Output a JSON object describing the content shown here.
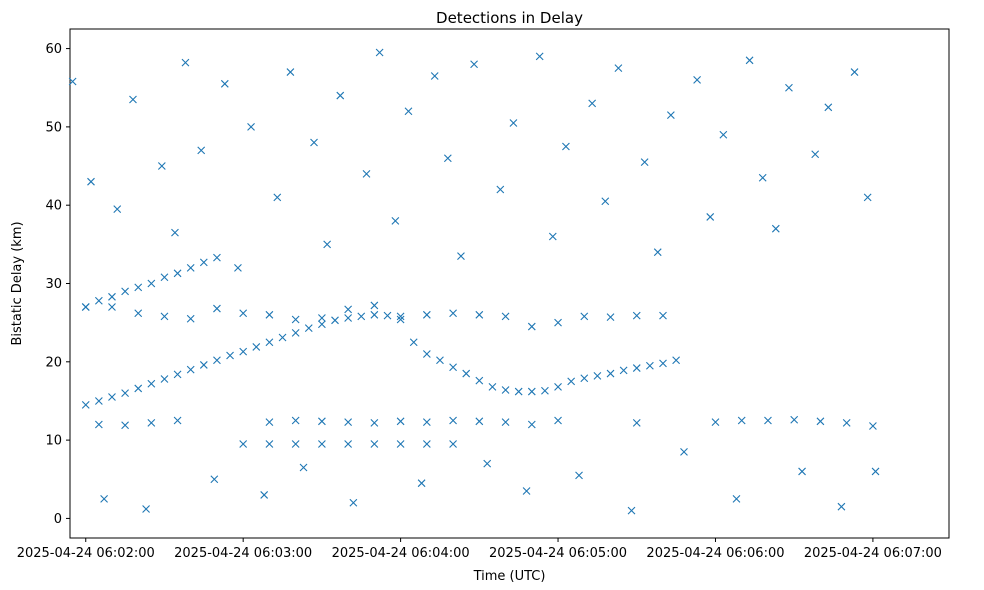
{
  "chart_data": {
    "type": "scatter",
    "title": "Detections in Delay",
    "xlabel": "Time (UTC)",
    "ylabel": "Bistatic Delay (km)",
    "x_unit": "seconds",
    "x_start": "2025-04-24 06:02:00",
    "xlim": [
      "2025-04-24 06:01:54",
      "2025-04-24 06:07:29"
    ],
    "ylim": [
      -2.5,
      62.5
    ],
    "x_ticks": [
      "2025-04-24 06:02:00",
      "2025-04-24 06:03:00",
      "2025-04-24 06:04:00",
      "2025-04-24 06:05:00",
      "2025-04-24 06:06:00",
      "2025-04-24 06:07:00"
    ],
    "y_ticks": [
      0,
      10,
      20,
      30,
      40,
      50,
      60
    ],
    "grid": false,
    "marker": "x",
    "color": "#1f77b4",
    "series": [
      {
        "x": [
          "2025-04-24 06:02:00",
          "2025-04-24 06:02:05",
          "2025-04-24 06:02:10",
          "2025-04-24 06:02:15",
          "2025-04-24 06:02:20",
          "2025-04-24 06:02:25",
          "2025-04-24 06:02:30",
          "2025-04-24 06:02:35",
          "2025-04-24 06:02:40",
          "2025-04-24 06:02:45",
          "2025-04-24 06:02:50",
          "2025-04-24 06:02:55",
          "2025-04-24 06:03:00",
          "2025-04-24 06:03:05",
          "2025-04-24 06:03:10",
          "2025-04-24 06:03:15",
          "2025-04-24 06:03:20",
          "2025-04-24 06:03:25",
          "2025-04-24 06:03:30",
          "2025-04-24 06:03:35",
          "2025-04-24 06:03:40",
          "2025-04-24 06:03:45",
          "2025-04-24 06:03:50",
          "2025-04-24 06:03:55",
          "2025-04-24 06:04:00",
          "2025-04-24 06:04:05",
          "2025-04-24 06:04:10",
          "2025-04-24 06:04:15",
          "2025-04-24 06:04:20",
          "2025-04-24 06:04:25",
          "2025-04-24 06:04:30",
          "2025-04-24 06:04:35",
          "2025-04-24 06:04:40",
          "2025-04-24 06:04:45",
          "2025-04-24 06:04:50",
          "2025-04-24 06:04:55",
          "2025-04-24 06:05:00",
          "2025-04-24 06:05:05",
          "2025-04-24 06:05:10",
          "2025-04-24 06:05:15",
          "2025-04-24 06:05:20",
          "2025-04-24 06:05:25",
          "2025-04-24 06:05:30",
          "2025-04-24 06:05:35",
          "2025-04-24 06:05:40",
          "2025-04-24 06:05:45"
        ],
        "y": [
          14.5,
          15.0,
          15.5,
          16.0,
          16.6,
          17.2,
          17.8,
          18.4,
          19.0,
          19.6,
          20.2,
          20.8,
          21.3,
          21.9,
          22.5,
          23.1,
          23.7,
          24.3,
          24.8,
          25.3,
          25.6,
          25.8,
          26.0,
          25.9,
          25.4,
          22.5,
          21.0,
          20.2,
          19.3,
          18.5,
          17.6,
          16.8,
          16.4,
          16.2,
          16.2,
          16.3,
          16.8,
          17.5,
          17.9,
          18.2,
          18.5,
          18.9,
          19.2,
          19.5,
          19.8,
          20.2
        ]
      },
      {
        "x": [
          "2025-04-24 06:02:00",
          "2025-04-24 06:02:05",
          "2025-04-24 06:02:10",
          "2025-04-24 06:02:15",
          "2025-04-24 06:02:20",
          "2025-04-24 06:02:25",
          "2025-04-24 06:02:30",
          "2025-04-24 06:02:35",
          "2025-04-24 06:02:40",
          "2025-04-24 06:02:45",
          "2025-04-24 06:02:50"
        ],
        "y": [
          27.0,
          27.8,
          28.3,
          29.0,
          29.5,
          30.0,
          30.8,
          31.3,
          32.0,
          32.7,
          33.3
        ]
      },
      {
        "x": [
          "2025-04-24 06:02:00",
          "2025-04-24 06:02:10",
          "2025-04-24 06:02:20",
          "2025-04-24 06:02:30",
          "2025-04-24 06:02:40",
          "2025-04-24 06:02:50",
          "2025-04-24 06:03:00",
          "2025-04-24 06:03:10",
          "2025-04-24 06:03:20",
          "2025-04-24 06:03:30",
          "2025-04-24 06:03:40",
          "2025-04-24 06:03:50",
          "2025-04-24 06:04:00",
          "2025-04-24 06:04:10",
          "2025-04-24 06:04:20",
          "2025-04-24 06:04:30",
          "2025-04-24 06:04:40",
          "2025-04-24 06:04:50",
          "2025-04-24 06:05:00",
          "2025-04-24 06:05:10",
          "2025-04-24 06:05:20",
          "2025-04-24 06:05:30",
          "2025-04-24 06:05:40"
        ],
        "y": [
          27.0,
          27.0,
          26.2,
          25.8,
          25.5,
          26.8,
          26.2,
          26.0,
          25.4,
          25.6,
          26.7,
          27.2,
          25.8,
          26.0,
          26.2,
          26.0,
          25.8,
          24.5,
          25.0,
          25.8,
          25.7,
          25.9,
          25.9
        ]
      },
      {
        "x": [
          "2025-04-24 06:02:05",
          "2025-04-24 06:02:15",
          "2025-04-24 06:02:25",
          "2025-04-24 06:02:35",
          "2025-04-24 06:03:10",
          "2025-04-24 06:03:20",
          "2025-04-24 06:03:30",
          "2025-04-24 06:03:40",
          "2025-04-24 06:03:50",
          "2025-04-24 06:04:00",
          "2025-04-24 06:04:10",
          "2025-04-24 06:04:20",
          "2025-04-24 06:04:30",
          "2025-04-24 06:04:40",
          "2025-04-24 06:04:50",
          "2025-04-24 06:05:00",
          "2025-04-24 06:05:30",
          "2025-04-24 06:06:00",
          "2025-04-24 06:06:10",
          "2025-04-24 06:06:20",
          "2025-04-24 06:06:30",
          "2025-04-24 06:06:40",
          "2025-04-24 06:06:50",
          "2025-04-24 06:07:00"
        ],
        "y": [
          12.0,
          11.9,
          12.2,
          12.5,
          12.3,
          12.5,
          12.4,
          12.3,
          12.2,
          12.4,
          12.3,
          12.5,
          12.4,
          12.3,
          12.0,
          12.5,
          12.2,
          12.3,
          12.5,
          12.5,
          12.6,
          12.4,
          12.2,
          11.8
        ]
      },
      {
        "x": [
          "2025-04-24 06:03:00",
          "2025-04-24 06:03:10",
          "2025-04-24 06:03:20",
          "2025-04-24 06:03:30",
          "2025-04-24 06:03:40",
          "2025-04-24 06:03:50",
          "2025-04-24 06:04:00",
          "2025-04-24 06:04:10",
          "2025-04-24 06:04:20"
        ],
        "y": [
          9.5,
          9.5,
          9.5,
          9.5,
          9.5,
          9.5,
          9.5,
          9.5,
          9.5
        ]
      },
      {
        "x": [
          "2025-04-24 06:01:55",
          "2025-04-24 06:02:02",
          "2025-04-24 06:02:07",
          "2025-04-24 06:02:12",
          "2025-04-24 06:02:18",
          "2025-04-24 06:02:23",
          "2025-04-24 06:02:29",
          "2025-04-24 06:02:34",
          "2025-04-24 06:02:38",
          "2025-04-24 06:02:44",
          "2025-04-24 06:02:49",
          "2025-04-24 06:02:53",
          "2025-04-24 06:02:58",
          "2025-04-24 06:03:03",
          "2025-04-24 06:03:08",
          "2025-04-24 06:03:13",
          "2025-04-24 06:03:18",
          "2025-04-24 06:03:23",
          "2025-04-24 06:03:27",
          "2025-04-24 06:03:32",
          "2025-04-24 06:03:37",
          "2025-04-24 06:03:42",
          "2025-04-24 06:03:47",
          "2025-04-24 06:03:52",
          "2025-04-24 06:03:58",
          "2025-04-24 06:04:03",
          "2025-04-24 06:04:08",
          "2025-04-24 06:04:13",
          "2025-04-24 06:04:18",
          "2025-04-24 06:04:23",
          "2025-04-24 06:04:28",
          "2025-04-24 06:04:33",
          "2025-04-24 06:04:38",
          "2025-04-24 06:04:43",
          "2025-04-24 06:04:48",
          "2025-04-24 06:04:53",
          "2025-04-24 06:04:58",
          "2025-04-24 06:05:03",
          "2025-04-24 06:05:08",
          "2025-04-24 06:05:13",
          "2025-04-24 06:05:18",
          "2025-04-24 06:05:23",
          "2025-04-24 06:05:28",
          "2025-04-24 06:05:33",
          "2025-04-24 06:05:38",
          "2025-04-24 06:05:43",
          "2025-04-24 06:05:48",
          "2025-04-24 06:05:53",
          "2025-04-24 06:05:58",
          "2025-04-24 06:06:03",
          "2025-04-24 06:06:08",
          "2025-04-24 06:06:13",
          "2025-04-24 06:06:18",
          "2025-04-24 06:06:23",
          "2025-04-24 06:06:28",
          "2025-04-24 06:06:33",
          "2025-04-24 06:06:38",
          "2025-04-24 06:06:43",
          "2025-04-24 06:06:48",
          "2025-04-24 06:06:53",
          "2025-04-24 06:06:58",
          "2025-04-24 06:07:01"
        ],
        "y": [
          55.8,
          43.0,
          2.5,
          39.5,
          53.5,
          1.2,
          45.0,
          36.5,
          58.2,
          47.0,
          5.0,
          55.5,
          32.0,
          50.0,
          3.0,
          41.0,
          57.0,
          6.5,
          48.0,
          35.0,
          54.0,
          2.0,
          44.0,
          59.5,
          38.0,
          52.0,
          4.5,
          56.5,
          46.0,
          33.5,
          58.0,
          7.0,
          42.0,
          50.5,
          3.5,
          59.0,
          36.0,
          47.5,
          5.5,
          53.0,
          40.5,
          57.5,
          1.0,
          45.5,
          34.0,
          51.5,
          8.5,
          56.0,
          38.5,
          49.0,
          2.5,
          58.5,
          43.5,
          37.0,
          55.0,
          6.0,
          46.5,
          52.5,
          1.5,
          57.0,
          41.0,
          6.0
        ]
      }
    ]
  }
}
